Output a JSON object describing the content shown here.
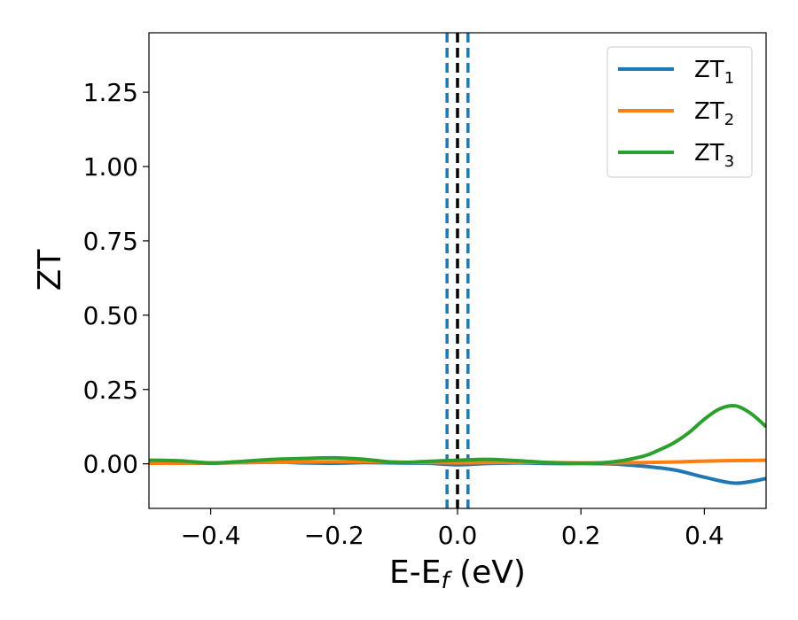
{
  "chart_data": {
    "type": "line",
    "xlabel_main": "E-E",
    "xlabel_sub": "f",
    "xlabel_unit": " (eV)",
    "ylabel": "ZT",
    "xlim": [
      -0.5,
      0.5
    ],
    "ylim": [
      -0.15,
      1.45
    ],
    "xticks": [
      -0.4,
      -0.2,
      0.0,
      0.2,
      0.4
    ],
    "xtick_labels": [
      "−0.4",
      "−0.2",
      "0.0",
      "0.2",
      "0.4"
    ],
    "yticks": [
      0.0,
      0.25,
      0.5,
      0.75,
      1.0,
      1.25
    ],
    "ytick_labels": [
      "0.00",
      "0.25",
      "0.50",
      "0.75",
      "1.00",
      "1.25"
    ],
    "legend_placement": "top-right",
    "vlines": [
      {
        "x": -0.017,
        "color": "#1f77b4",
        "style": "dashed"
      },
      {
        "x": 0.0,
        "color": "#000000",
        "style": "dashed"
      },
      {
        "x": 0.017,
        "color": "#1f77b4",
        "style": "dashed"
      }
    ],
    "series": [
      {
        "name": "ZT",
        "sub": "1",
        "color": "#1f77b4",
        "x": [
          -0.5,
          -0.45,
          -0.4,
          -0.35,
          -0.3,
          -0.25,
          -0.2,
          -0.15,
          -0.1,
          -0.05,
          0.0,
          0.05,
          0.1,
          0.15,
          0.2,
          0.25,
          0.3,
          0.35,
          0.4,
          0.45,
          0.5
        ],
        "y": [
          0.005,
          0.003,
          0.002,
          0.004,
          0.006,
          0.003,
          0.002,
          0.004,
          0.003,
          0.002,
          -0.003,
          0.001,
          0.003,
          0.001,
          0.001,
          0.0,
          -0.008,
          -0.02,
          -0.045,
          -0.065,
          -0.05
        ]
      },
      {
        "name": "ZT",
        "sub": "2",
        "color": "#ff7f0e",
        "x": [
          -0.5,
          -0.45,
          -0.4,
          -0.35,
          -0.3,
          -0.25,
          -0.2,
          -0.15,
          -0.1,
          -0.05,
          0.0,
          0.05,
          0.1,
          0.15,
          0.2,
          0.25,
          0.3,
          0.35,
          0.4,
          0.45,
          0.5
        ],
        "y": [
          0.002,
          0.002,
          0.003,
          0.004,
          0.005,
          0.006,
          0.007,
          0.007,
          0.006,
          0.004,
          0.003,
          0.004,
          0.005,
          0.004,
          0.003,
          0.003,
          0.004,
          0.006,
          0.009,
          0.011,
          0.012
        ]
      },
      {
        "name": "ZT",
        "sub": "3",
        "color": "#2ca02c",
        "x": [
          -0.5,
          -0.45,
          -0.4,
          -0.35,
          -0.3,
          -0.25,
          -0.2,
          -0.15,
          -0.1,
          -0.05,
          0.0,
          0.05,
          0.1,
          0.15,
          0.2,
          0.25,
          0.3,
          0.325,
          0.35,
          0.375,
          0.4,
          0.425,
          0.45,
          0.475,
          0.5
        ],
        "y": [
          0.012,
          0.01,
          0.003,
          0.008,
          0.015,
          0.018,
          0.02,
          0.015,
          0.005,
          0.008,
          0.012,
          0.015,
          0.01,
          0.004,
          0.002,
          0.006,
          0.025,
          0.045,
          0.07,
          0.105,
          0.15,
          0.185,
          0.195,
          0.17,
          0.125
        ]
      }
    ]
  }
}
